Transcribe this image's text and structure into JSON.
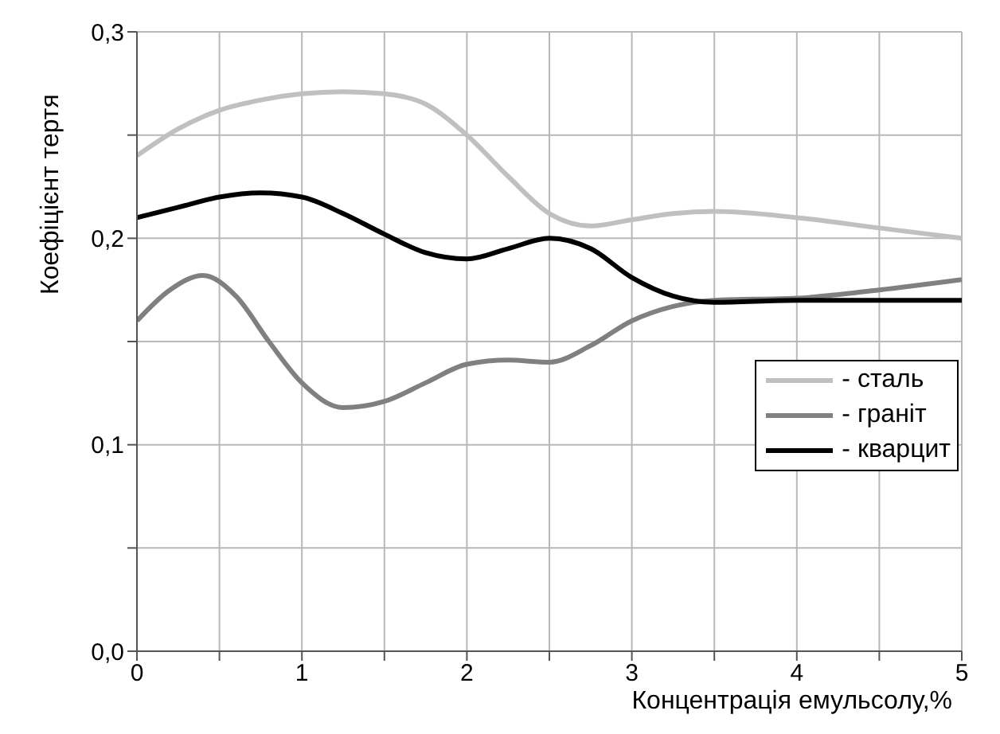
{
  "chart_data": {
    "type": "line",
    "xlabel": "Концентрація емульсолу,%",
    "ylabel": "Коефіцієнт тертя",
    "xlim": [
      0,
      5
    ],
    "xticks": [
      0,
      {
        "value": 0.5,
        "label": null
      },
      1,
      {
        "value": 1.5,
        "label": null
      },
      2,
      {
        "value": 2.5,
        "label": null
      },
      3,
      {
        "value": 3.5,
        "label": null
      },
      4,
      {
        "value": 4.5,
        "label": null
      },
      5
    ],
    "ylim": [
      0,
      0.3
    ],
    "yticks": [
      {
        "value": 0,
        "label": "0,0"
      },
      {
        "value": 0.05,
        "label": null
      },
      {
        "value": 0.1,
        "label": "0,1"
      },
      {
        "value": 0.15,
        "label": null
      },
      {
        "value": 0.2,
        "label": "0,2"
      },
      {
        "value": 0.25,
        "label": null
      },
      {
        "value": 0.3,
        "label": "0,3"
      }
    ],
    "grid": true,
    "legend": "right",
    "marker": "none",
    "line_style": "solid",
    "series": [
      {
        "name": "- сталь",
        "color": "#c0c0c0",
        "x": [
          0,
          0.25,
          0.5,
          0.75,
          1,
          1.25,
          1.5,
          1.75,
          2,
          2.25,
          2.5,
          2.75,
          3,
          3.25,
          3.5,
          4,
          4.5,
          5
        ],
        "values": [
          0.24,
          0.253,
          0.262,
          0.267,
          0.27,
          0.271,
          0.27,
          0.265,
          0.25,
          0.23,
          0.212,
          0.206,
          0.209,
          0.212,
          0.213,
          0.21,
          0.205,
          0.2
        ]
      },
      {
        "name": "- граніт",
        "color": "#808080",
        "x": [
          0,
          0.2,
          0.4,
          0.6,
          0.8,
          1,
          1.25,
          1.5,
          1.75,
          2,
          2.25,
          2.5,
          2.75,
          3,
          3.25,
          3.5,
          4,
          4.5,
          5
        ],
        "values": [
          0.16,
          0.175,
          0.182,
          0.172,
          0.15,
          0.13,
          0.118,
          0.121,
          0.13,
          0.139,
          0.141,
          0.14,
          0.148,
          0.16,
          0.167,
          0.17,
          0.171,
          0.175,
          0.18
        ]
      },
      {
        "name": "- кварцит",
        "color": "#000000",
        "x": [
          0,
          0.25,
          0.5,
          0.75,
          1,
          1.25,
          1.5,
          1.75,
          2,
          2.25,
          2.5,
          2.75,
          3,
          3.25,
          3.5,
          4,
          4.5,
          5
        ],
        "values": [
          0.21,
          0.215,
          0.22,
          0.222,
          0.22,
          0.212,
          0.202,
          0.193,
          0.19,
          0.195,
          0.2,
          0.195,
          0.181,
          0.172,
          0.169,
          0.17,
          0.17,
          0.17
        ]
      }
    ]
  }
}
